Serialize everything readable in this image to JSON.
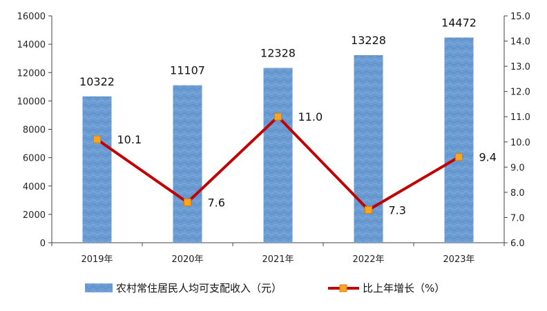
{
  "chart_data": {
    "type": "bar",
    "categories": [
      "2019年",
      "2020年",
      "2021年",
      "2022年",
      "2023年"
    ],
    "series": [
      {
        "name": "农村常住居民人均可支配收入（元）",
        "type": "bar",
        "axis": "left",
        "color": "#6a9bd2",
        "values": [
          10322,
          11107,
          12328,
          13228,
          14472
        ]
      },
      {
        "name": "比上年增长（%）",
        "type": "line",
        "axis": "right",
        "color": "#c00000",
        "marker_color": "#f5a623",
        "values": [
          10.1,
          7.6,
          11.0,
          7.3,
          9.4
        ]
      }
    ],
    "y_left": {
      "range": [
        0,
        16000
      ],
      "ticks": [
        "0",
        "2000",
        "4000",
        "6000",
        "8000",
        "10000",
        "12000",
        "14000",
        "16000"
      ]
    },
    "y_right": {
      "range": [
        6.0,
        15.0
      ],
      "ticks": [
        "6.0",
        "7.0",
        "8.0",
        "9.0",
        "10.0",
        "11.0",
        "12.0",
        "13.0",
        "14.0",
        "15.0"
      ]
    },
    "bar_labels": [
      "10322",
      "11107",
      "12328",
      "13228",
      "14472"
    ],
    "line_labels": [
      "10.1",
      "7.6",
      "11.0",
      "7.3",
      "9.4"
    ],
    "legend_position": "bottom",
    "grid": false
  }
}
